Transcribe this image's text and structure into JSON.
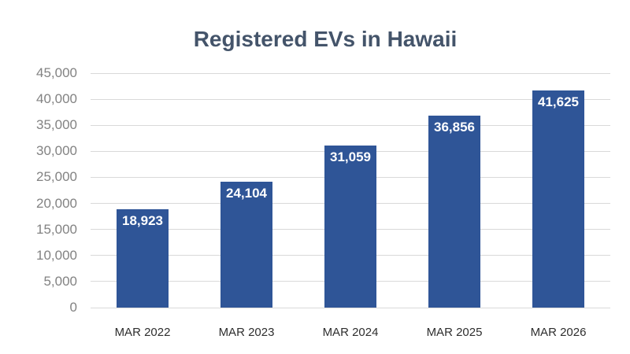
{
  "chart_data": {
    "type": "bar",
    "title": "Registered EVs in Hawaii",
    "categories": [
      "MAR 2022",
      "MAR 2023",
      "MAR 2024",
      "MAR 2025",
      "MAR 2026"
    ],
    "values": [
      18923,
      24104,
      31059,
      36856,
      41625
    ],
    "value_labels": [
      "18,923",
      "24,104",
      "31,059",
      "36,856",
      "41,625"
    ],
    "xlabel": "",
    "ylabel": "",
    "y_axis": {
      "min": 0,
      "max": 45000,
      "step": 5000,
      "tick_labels_top_to_bottom": [
        "45,000",
        "40,000",
        "35,000",
        "30,000",
        "25,000",
        "20,000",
        "15,000",
        "10,000",
        "5,000",
        "0"
      ]
    },
    "grid": "horizontal",
    "legend_position": "none",
    "colors": {
      "bar": "#2F5597",
      "bar_label_text": "#FFFFFF",
      "title_text": "#44546A",
      "y_tick_text": "#828282",
      "x_tick_text": "#2E2E2E",
      "gridline": "#D9D9D9",
      "background": "#FFFFFF"
    }
  }
}
